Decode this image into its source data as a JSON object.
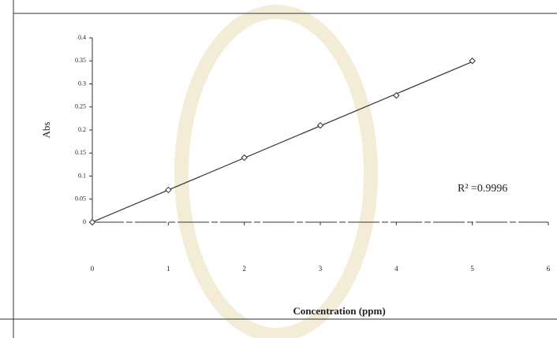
{
  "chart_data": {
    "type": "scatter",
    "x_label": "Concentration (ppm)",
    "y_label": "Abs",
    "annotation": "R² =0.9996",
    "x": [
      0,
      1,
      2,
      3,
      4,
      5
    ],
    "series": [
      {
        "name": "Abs",
        "color": "#333333",
        "values": [
          0,
          0.07,
          0.14,
          0.21,
          0.275,
          0.35
        ]
      }
    ],
    "xlim": [
      0,
      6
    ],
    "xticks": [
      0,
      1,
      2,
      3,
      4,
      5,
      6
    ],
    "ylim": [
      0,
      0.4
    ],
    "yticks": [
      0,
      0.05,
      0.1,
      0.15,
      0.2,
      0.25,
      0.3,
      0.35,
      0.4
    ],
    "trendline": true,
    "grid": false
  }
}
